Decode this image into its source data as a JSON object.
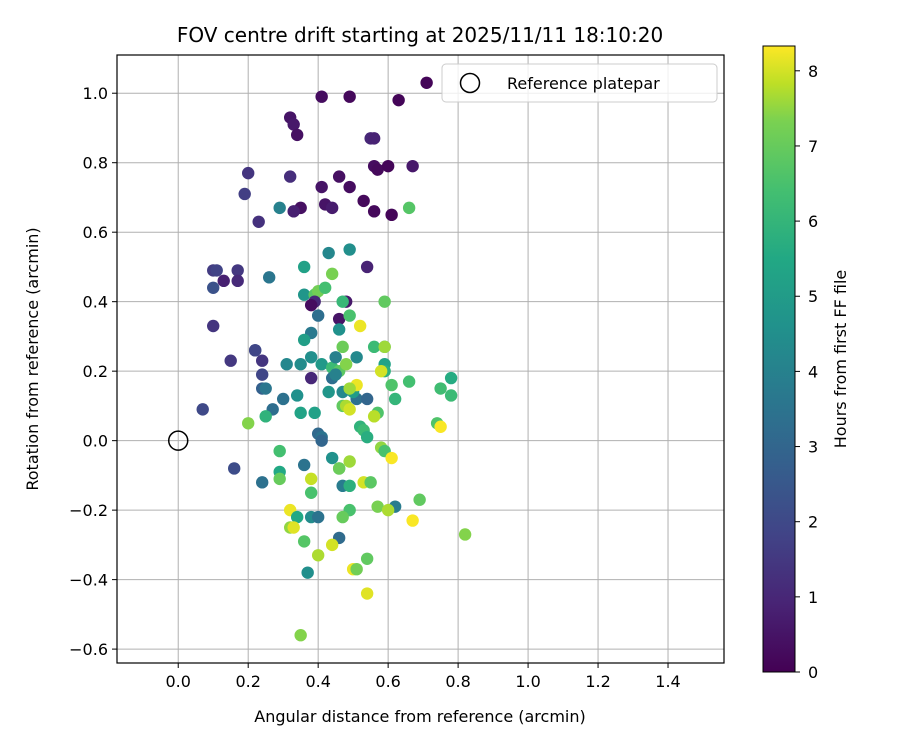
{
  "chart_data": {
    "type": "scatter",
    "title": "FOV centre drift starting at 2025/11/11 18:10:20",
    "xlabel": "Angular distance from reference (arcmin)",
    "ylabel": "Rotation from reference (arcmin)",
    "xlim": [
      -0.175,
      1.56
    ],
    "ylim": [
      -0.64,
      1.11
    ],
    "xticks": [
      0.0,
      0.2,
      0.4,
      0.6,
      0.8,
      1.0,
      1.2,
      1.4
    ],
    "xtick_labels": [
      "0.0",
      "0.2",
      "0.4",
      "0.6",
      "0.8",
      "1.0",
      "1.2",
      "1.4"
    ],
    "yticks": [
      -0.6,
      -0.4,
      -0.2,
      0.0,
      0.2,
      0.4,
      0.6,
      0.8,
      1.0
    ],
    "ytick_labels": [
      "−0.6",
      "−0.4",
      "−0.2",
      "0.0",
      "0.2",
      "0.4",
      "0.6",
      "0.8",
      "1.0"
    ],
    "grid": true,
    "legend": {
      "position": "top-right",
      "label": "Reference platepar"
    },
    "reference_point": {
      "x": 0.0,
      "y": 0.0
    },
    "colorbar": {
      "label": "Hours from first FF file",
      "colormap": "viridis",
      "min": 0,
      "max": 8.33,
      "ticks": [
        0,
        1,
        2,
        3,
        4,
        5,
        6,
        7,
        8
      ],
      "tick_labels": [
        "0",
        "1",
        "2",
        "3",
        "4",
        "5",
        "6",
        "7",
        "8"
      ]
    },
    "points": [
      {
        "x": 0.71,
        "y": 1.03,
        "c": 0.1
      },
      {
        "x": 0.41,
        "y": 0.99,
        "c": 0.3
      },
      {
        "x": 0.49,
        "y": 0.99,
        "c": 0.2
      },
      {
        "x": 0.63,
        "y": 0.98,
        "c": 0.1
      },
      {
        "x": 0.32,
        "y": 0.93,
        "c": 0.5
      },
      {
        "x": 0.33,
        "y": 0.91,
        "c": 0.6
      },
      {
        "x": 0.34,
        "y": 0.88,
        "c": 0.4
      },
      {
        "x": 0.55,
        "y": 0.87,
        "c": 1.0
      },
      {
        "x": 0.56,
        "y": 0.87,
        "c": 0.9
      },
      {
        "x": 0.56,
        "y": 0.79,
        "c": 0.3
      },
      {
        "x": 0.57,
        "y": 0.78,
        "c": 0.2
      },
      {
        "x": 0.6,
        "y": 0.79,
        "c": 0.1
      },
      {
        "x": 0.67,
        "y": 0.79,
        "c": 0.6
      },
      {
        "x": 0.2,
        "y": 0.77,
        "c": 1.4
      },
      {
        "x": 0.32,
        "y": 0.76,
        "c": 1.2
      },
      {
        "x": 0.46,
        "y": 0.76,
        "c": 0.4
      },
      {
        "x": 0.41,
        "y": 0.73,
        "c": 0.5
      },
      {
        "x": 0.49,
        "y": 0.73,
        "c": 0.3
      },
      {
        "x": 0.19,
        "y": 0.71,
        "c": 1.7
      },
      {
        "x": 0.53,
        "y": 0.69,
        "c": 0.2
      },
      {
        "x": 0.42,
        "y": 0.68,
        "c": 0.5
      },
      {
        "x": 0.44,
        "y": 0.67,
        "c": 0.7
      },
      {
        "x": 0.35,
        "y": 0.67,
        "c": 0.4
      },
      {
        "x": 0.33,
        "y": 0.66,
        "c": 0.8
      },
      {
        "x": 0.56,
        "y": 0.66,
        "c": 0.2
      },
      {
        "x": 0.61,
        "y": 0.65,
        "c": 0.1
      },
      {
        "x": 0.29,
        "y": 0.67,
        "c": 4.0
      },
      {
        "x": 0.66,
        "y": 0.67,
        "c": 6.7
      },
      {
        "x": 0.23,
        "y": 0.63,
        "c": 1.3
      },
      {
        "x": 0.43,
        "y": 0.54,
        "c": 4.2
      },
      {
        "x": 0.49,
        "y": 0.55,
        "c": 4.5
      },
      {
        "x": 0.54,
        "y": 0.5,
        "c": 0.9
      },
      {
        "x": 0.36,
        "y": 0.5,
        "c": 5.2
      },
      {
        "x": 0.1,
        "y": 0.49,
        "c": 1.6
      },
      {
        "x": 0.11,
        "y": 0.49,
        "c": 1.8
      },
      {
        "x": 0.17,
        "y": 0.49,
        "c": 1.5
      },
      {
        "x": 0.26,
        "y": 0.47,
        "c": 3.6
      },
      {
        "x": 0.44,
        "y": 0.48,
        "c": 7.3
      },
      {
        "x": 0.13,
        "y": 0.46,
        "c": 0.8
      },
      {
        "x": 0.17,
        "y": 0.46,
        "c": 1.1
      },
      {
        "x": 0.1,
        "y": 0.44,
        "c": 2.3
      },
      {
        "x": 0.36,
        "y": 0.42,
        "c": 4.8
      },
      {
        "x": 0.39,
        "y": 0.42,
        "c": 6.8
      },
      {
        "x": 0.4,
        "y": 0.43,
        "c": 7.2
      },
      {
        "x": 0.42,
        "y": 0.44,
        "c": 6.4
      },
      {
        "x": 0.39,
        "y": 0.4,
        "c": 1.0
      },
      {
        "x": 0.48,
        "y": 0.4,
        "c": 0.6
      },
      {
        "x": 0.47,
        "y": 0.4,
        "c": 6.1
      },
      {
        "x": 0.59,
        "y": 0.4,
        "c": 6.9
      },
      {
        "x": 0.38,
        "y": 0.39,
        "c": 0.3
      },
      {
        "x": 0.4,
        "y": 0.36,
        "c": 3.3
      },
      {
        "x": 0.46,
        "y": 0.35,
        "c": 0.5
      },
      {
        "x": 0.49,
        "y": 0.36,
        "c": 6.5
      },
      {
        "x": 0.52,
        "y": 0.33,
        "c": 8.2
      },
      {
        "x": 0.1,
        "y": 0.33,
        "c": 1.4
      },
      {
        "x": 0.38,
        "y": 0.31,
        "c": 3.7
      },
      {
        "x": 0.46,
        "y": 0.32,
        "c": 4.6
      },
      {
        "x": 0.36,
        "y": 0.29,
        "c": 5.1
      },
      {
        "x": 0.47,
        "y": 0.27,
        "c": 7.1
      },
      {
        "x": 0.56,
        "y": 0.27,
        "c": 6.2
      },
      {
        "x": 0.59,
        "y": 0.27,
        "c": 5.5
      },
      {
        "x": 0.59,
        "y": 0.27,
        "c": 7.6
      },
      {
        "x": 0.22,
        "y": 0.26,
        "c": 2.4
      },
      {
        "x": 0.22,
        "y": 0.26,
        "c": 1.9
      },
      {
        "x": 0.15,
        "y": 0.23,
        "c": 1.5
      },
      {
        "x": 0.24,
        "y": 0.23,
        "c": 1.4
      },
      {
        "x": 0.31,
        "y": 0.22,
        "c": 4.2
      },
      {
        "x": 0.35,
        "y": 0.22,
        "c": 4.4
      },
      {
        "x": 0.38,
        "y": 0.24,
        "c": 4.5
      },
      {
        "x": 0.41,
        "y": 0.22,
        "c": 4.9
      },
      {
        "x": 0.44,
        "y": 0.21,
        "c": 6.2
      },
      {
        "x": 0.45,
        "y": 0.24,
        "c": 4.0
      },
      {
        "x": 0.46,
        "y": 0.2,
        "c": 6.8
      },
      {
        "x": 0.48,
        "y": 0.22,
        "c": 7.4
      },
      {
        "x": 0.51,
        "y": 0.24,
        "c": 4.3
      },
      {
        "x": 0.59,
        "y": 0.22,
        "c": 5.3
      },
      {
        "x": 0.59,
        "y": 0.2,
        "c": 5.8
      },
      {
        "x": 0.58,
        "y": 0.2,
        "c": 8.0
      },
      {
        "x": 0.24,
        "y": 0.19,
        "c": 1.9
      },
      {
        "x": 0.38,
        "y": 0.18,
        "c": 1.0
      },
      {
        "x": 0.44,
        "y": 0.18,
        "c": 3.3
      },
      {
        "x": 0.45,
        "y": 0.19,
        "c": 4.0
      },
      {
        "x": 0.61,
        "y": 0.16,
        "c": 6.6
      },
      {
        "x": 0.66,
        "y": 0.17,
        "c": 6.4
      },
      {
        "x": 0.78,
        "y": 0.18,
        "c": 5.6
      },
      {
        "x": 0.75,
        "y": 0.15,
        "c": 6.3
      },
      {
        "x": 0.78,
        "y": 0.13,
        "c": 6.2
      },
      {
        "x": 0.24,
        "y": 0.15,
        "c": 2.8
      },
      {
        "x": 0.25,
        "y": 0.15,
        "c": 3.6
      },
      {
        "x": 0.3,
        "y": 0.12,
        "c": 3.4
      },
      {
        "x": 0.34,
        "y": 0.13,
        "c": 4.6
      },
      {
        "x": 0.43,
        "y": 0.14,
        "c": 4.8
      },
      {
        "x": 0.47,
        "y": 0.14,
        "c": 4.3
      },
      {
        "x": 0.51,
        "y": 0.12,
        "c": 3.4
      },
      {
        "x": 0.5,
        "y": 0.14,
        "c": 5.0
      },
      {
        "x": 0.54,
        "y": 0.12,
        "c": 3.0
      },
      {
        "x": 0.51,
        "y": 0.16,
        "c": 8.2
      },
      {
        "x": 0.49,
        "y": 0.15,
        "c": 7.6
      },
      {
        "x": 0.62,
        "y": 0.12,
        "c": 6.0
      },
      {
        "x": 0.47,
        "y": 0.1,
        "c": 6.9
      },
      {
        "x": 0.48,
        "y": 0.1,
        "c": 7.7
      },
      {
        "x": 0.49,
        "y": 0.09,
        "c": 8.0
      },
      {
        "x": 0.07,
        "y": 0.09,
        "c": 2.0
      },
      {
        "x": 0.27,
        "y": 0.09,
        "c": 3.3
      },
      {
        "x": 0.35,
        "y": 0.08,
        "c": 5.3
      },
      {
        "x": 0.39,
        "y": 0.08,
        "c": 5.2
      },
      {
        "x": 0.57,
        "y": 0.08,
        "c": 6.6
      },
      {
        "x": 0.25,
        "y": 0.07,
        "c": 5.9
      },
      {
        "x": 0.56,
        "y": 0.07,
        "c": 7.8
      },
      {
        "x": 0.2,
        "y": 0.05,
        "c": 7.4
      },
      {
        "x": 0.74,
        "y": 0.05,
        "c": 6.6
      },
      {
        "x": 0.75,
        "y": 0.04,
        "c": 8.3
      },
      {
        "x": 0.52,
        "y": 0.04,
        "c": 5.9
      },
      {
        "x": 0.53,
        "y": 0.03,
        "c": 6.2
      },
      {
        "x": 0.54,
        "y": 0.01,
        "c": 5.7
      },
      {
        "x": 0.4,
        "y": 0.02,
        "c": 3.1
      },
      {
        "x": 0.41,
        "y": 0.01,
        "c": 3.5
      },
      {
        "x": 0.41,
        "y": 0.0,
        "c": 3.0
      },
      {
        "x": 0.58,
        "y": -0.02,
        "c": 7.5
      },
      {
        "x": 0.59,
        "y": -0.03,
        "c": 6.5
      },
      {
        "x": 0.29,
        "y": -0.03,
        "c": 6.4
      },
      {
        "x": 0.61,
        "y": -0.05,
        "c": 8.3
      },
      {
        "x": 0.44,
        "y": -0.05,
        "c": 4.6
      },
      {
        "x": 0.49,
        "y": -0.06,
        "c": 7.6
      },
      {
        "x": 0.36,
        "y": -0.07,
        "c": 3.5
      },
      {
        "x": 0.16,
        "y": -0.08,
        "c": 2.1
      },
      {
        "x": 0.29,
        "y": -0.09,
        "c": 5.5
      },
      {
        "x": 0.46,
        "y": -0.08,
        "c": 6.4
      },
      {
        "x": 0.46,
        "y": -0.08,
        "c": 7.1
      },
      {
        "x": 0.29,
        "y": -0.11,
        "c": 7.0
      },
      {
        "x": 0.38,
        "y": -0.11,
        "c": 7.9
      },
      {
        "x": 0.24,
        "y": -0.12,
        "c": 3.4
      },
      {
        "x": 0.47,
        "y": -0.13,
        "c": 3.8
      },
      {
        "x": 0.49,
        "y": -0.13,
        "c": 5.8
      },
      {
        "x": 0.53,
        "y": -0.12,
        "c": 8.0
      },
      {
        "x": 0.55,
        "y": -0.12,
        "c": 6.8
      },
      {
        "x": 0.38,
        "y": -0.15,
        "c": 6.5
      },
      {
        "x": 0.69,
        "y": -0.17,
        "c": 6.9
      },
      {
        "x": 0.57,
        "y": -0.19,
        "c": 7.3
      },
      {
        "x": 0.62,
        "y": -0.19,
        "c": 3.8
      },
      {
        "x": 0.6,
        "y": -0.2,
        "c": 7.7
      },
      {
        "x": 0.49,
        "y": -0.2,
        "c": 6.5
      },
      {
        "x": 0.32,
        "y": -0.2,
        "c": 8.2
      },
      {
        "x": 0.34,
        "y": -0.22,
        "c": 5.5
      },
      {
        "x": 0.38,
        "y": -0.22,
        "c": 4.4
      },
      {
        "x": 0.4,
        "y": -0.22,
        "c": 3.5
      },
      {
        "x": 0.47,
        "y": -0.22,
        "c": 7.0
      },
      {
        "x": 0.67,
        "y": -0.23,
        "c": 8.3
      },
      {
        "x": 0.32,
        "y": -0.25,
        "c": 7.5
      },
      {
        "x": 0.33,
        "y": -0.25,
        "c": 8.1
      },
      {
        "x": 0.82,
        "y": -0.27,
        "c": 7.4
      },
      {
        "x": 0.46,
        "y": -0.28,
        "c": 3.2
      },
      {
        "x": 0.36,
        "y": -0.29,
        "c": 6.7
      },
      {
        "x": 0.44,
        "y": -0.3,
        "c": 8.0
      },
      {
        "x": 0.4,
        "y": -0.33,
        "c": 7.7
      },
      {
        "x": 0.54,
        "y": -0.34,
        "c": 6.9
      },
      {
        "x": 0.5,
        "y": -0.37,
        "c": 8.2
      },
      {
        "x": 0.51,
        "y": -0.37,
        "c": 7.2
      },
      {
        "x": 0.37,
        "y": -0.38,
        "c": 4.5
      },
      {
        "x": 0.54,
        "y": -0.44,
        "c": 8.1
      },
      {
        "x": 0.35,
        "y": -0.56,
        "c": 7.4
      }
    ]
  }
}
